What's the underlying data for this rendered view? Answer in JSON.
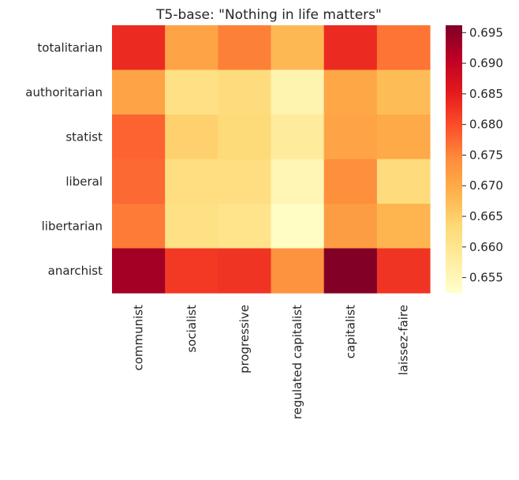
{
  "chart_data": {
    "type": "heatmap",
    "title": "T5-base: \"Nothing in life matters\"",
    "rows": [
      "totalitarian",
      "authoritarian",
      "statist",
      "liberal",
      "libertarian",
      "anarchist"
    ],
    "columns": [
      "communist",
      "socialist",
      "progressive",
      "regulated capitalist",
      "capitalist",
      "laissez-faire"
    ],
    "values": [
      [
        0.6835,
        0.671,
        0.6755,
        0.668,
        0.6835,
        0.6765
      ],
      [
        0.671,
        0.6615,
        0.6625,
        0.656,
        0.6705,
        0.6675
      ],
      [
        0.678,
        0.6645,
        0.663,
        0.6585,
        0.671,
        0.67
      ],
      [
        0.6775,
        0.662,
        0.662,
        0.6555,
        0.674,
        0.6625
      ],
      [
        0.676,
        0.6615,
        0.6605,
        0.6535,
        0.672,
        0.6685
      ],
      [
        0.693,
        0.682,
        0.6825,
        0.6735,
        0.696,
        0.6825
      ]
    ],
    "colorbar": {
      "vmin": 0.6525,
      "vmax": 0.6962,
      "ticks": [
        0.655,
        0.66,
        0.665,
        0.67,
        0.675,
        0.68,
        0.685,
        0.69,
        0.695
      ],
      "tick_labels": [
        "0.655",
        "0.660",
        "0.665",
        "0.670",
        "0.675",
        "0.680",
        "0.685",
        "0.690",
        "0.695"
      ]
    },
    "colormap": "YlOrRd",
    "colormap_stops": [
      "#ffffcc",
      "#ffeda0",
      "#fed976",
      "#feb24c",
      "#fd8d3c",
      "#fc4e2a",
      "#e31a1c",
      "#bd0026",
      "#800026"
    ],
    "grid": false
  }
}
